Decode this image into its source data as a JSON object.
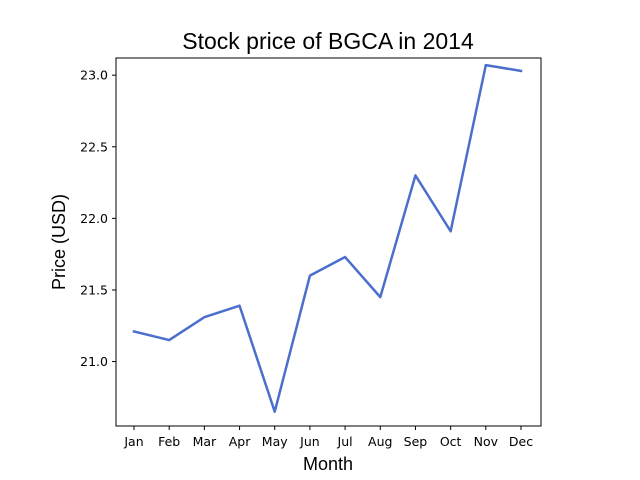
{
  "chart_data": {
    "type": "line",
    "title": "Stock price of BGCA in 2014",
    "xlabel": "Month",
    "ylabel": "Price (USD)",
    "categories": [
      "Jan",
      "Feb",
      "Mar",
      "Apr",
      "May",
      "Jun",
      "Jul",
      "Aug",
      "Sep",
      "Oct",
      "Nov",
      "Dec"
    ],
    "series": [
      {
        "name": "BGCA",
        "values": [
          21.21,
          21.15,
          21.31,
          21.39,
          20.65,
          21.6,
          21.73,
          21.45,
          22.3,
          21.91,
          23.07,
          23.03
        ],
        "color": "#4c6fcd"
      }
    ],
    "ylim": [
      20.55,
      23.12
    ],
    "yticks": [
      "21.0",
      "21.5",
      "22.0",
      "22.5",
      "23.0"
    ],
    "grid": false
  }
}
